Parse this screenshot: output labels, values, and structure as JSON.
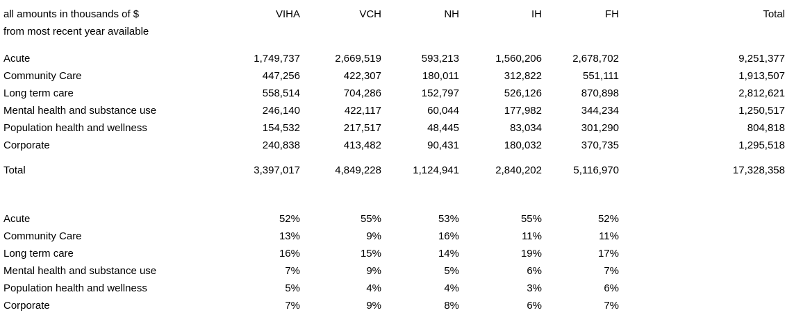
{
  "note": {
    "line1": "all amounts in thousands of $",
    "line2": "from most recent year available"
  },
  "columns": {
    "viha": "VIHA",
    "vch": "VCH",
    "nh": "NH",
    "ih": "IH",
    "fh": "FH",
    "total": "Total"
  },
  "amounts": {
    "rows": [
      {
        "label": "Acute",
        "viha": "1,749,737",
        "vch": "2,669,519",
        "nh": "593,213",
        "ih": "1,560,206",
        "fh": "2,678,702",
        "total": "9,251,377"
      },
      {
        "label": "Community Care",
        "viha": "447,256",
        "vch": "422,307",
        "nh": "180,011",
        "ih": "312,822",
        "fh": "551,111",
        "total": "1,913,507"
      },
      {
        "label": "Long term care",
        "viha": "558,514",
        "vch": "704,286",
        "nh": "152,797",
        "ih": "526,126",
        "fh": "870,898",
        "total": "2,812,621"
      },
      {
        "label": "Mental health and substance use",
        "viha": "246,140",
        "vch": "422,117",
        "nh": "60,044",
        "ih": "177,982",
        "fh": "344,234",
        "total": "1,250,517"
      },
      {
        "label": "Population health and wellness",
        "viha": "154,532",
        "vch": "217,517",
        "nh": "48,445",
        "ih": "83,034",
        "fh": "301,290",
        "total": "804,818"
      },
      {
        "label": "Corporate",
        "viha": "240,838",
        "vch": "413,482",
        "nh": "90,431",
        "ih": "180,032",
        "fh": "370,735",
        "total": "1,295,518"
      }
    ],
    "total": {
      "label": "Total",
      "viha": "3,397,017",
      "vch": "4,849,228",
      "nh": "1,124,941",
      "ih": "2,840,202",
      "fh": "5,116,970",
      "total": "17,328,358"
    }
  },
  "percentages": {
    "rows": [
      {
        "label": "Acute",
        "viha": "52%",
        "vch": "55%",
        "nh": "53%",
        "ih": "55%",
        "fh": "52%"
      },
      {
        "label": "Community Care",
        "viha": "13%",
        "vch": "9%",
        "nh": "16%",
        "ih": "11%",
        "fh": "11%"
      },
      {
        "label": "Long term care",
        "viha": "16%",
        "vch": "15%",
        "nh": "14%",
        "ih": "19%",
        "fh": "17%"
      },
      {
        "label": "Mental health and substance use",
        "viha": "7%",
        "vch": "9%",
        "nh": "5%",
        "ih": "6%",
        "fh": "7%"
      },
      {
        "label": "Population health and wellness",
        "viha": "5%",
        "vch": "4%",
        "nh": "4%",
        "ih": "3%",
        "fh": "6%"
      },
      {
        "label": "Corporate",
        "viha": "7%",
        "vch": "9%",
        "nh": "8%",
        "ih": "6%",
        "fh": "7%"
      }
    ]
  },
  "chart_data": {
    "type": "table",
    "title": "all amounts in thousands of $ from most recent year available",
    "units": "thousands of $",
    "categories": [
      "Acute",
      "Community Care",
      "Long term care",
      "Mental health and substance use",
      "Population health and wellness",
      "Corporate"
    ],
    "series": [
      {
        "name": "VIHA",
        "values": [
          1749737,
          447256,
          558514,
          246140,
          154532,
          240838
        ],
        "total": 3397017,
        "percentages": [
          52,
          13,
          16,
          7,
          5,
          7
        ]
      },
      {
        "name": "VCH",
        "values": [
          2669519,
          422307,
          704286,
          422117,
          217517,
          413482
        ],
        "total": 4849228,
        "percentages": [
          55,
          9,
          15,
          9,
          4,
          9
        ]
      },
      {
        "name": "NH",
        "values": [
          593213,
          180011,
          152797,
          60044,
          48445,
          90431
        ],
        "total": 1124941,
        "percentages": [
          53,
          16,
          14,
          5,
          4,
          8
        ]
      },
      {
        "name": "IH",
        "values": [
          1560206,
          312822,
          526126,
          177982,
          83034,
          180032
        ],
        "total": 2840202,
        "percentages": [
          55,
          11,
          19,
          6,
          3,
          6
        ]
      },
      {
        "name": "FH",
        "values": [
          2678702,
          551111,
          870898,
          344234,
          301290,
          370735
        ],
        "total": 5116970,
        "percentages": [
          52,
          11,
          17,
          7,
          6,
          7
        ]
      },
      {
        "name": "Total",
        "values": [
          9251377,
          1913507,
          2812621,
          1250517,
          804818,
          1295518
        ],
        "total": 17328358
      }
    ],
    "layout": {
      "grid": false,
      "numbers_alignment": "right",
      "sections": [
        "amounts",
        "column totals",
        "percentage breakdown per column"
      ]
    }
  }
}
